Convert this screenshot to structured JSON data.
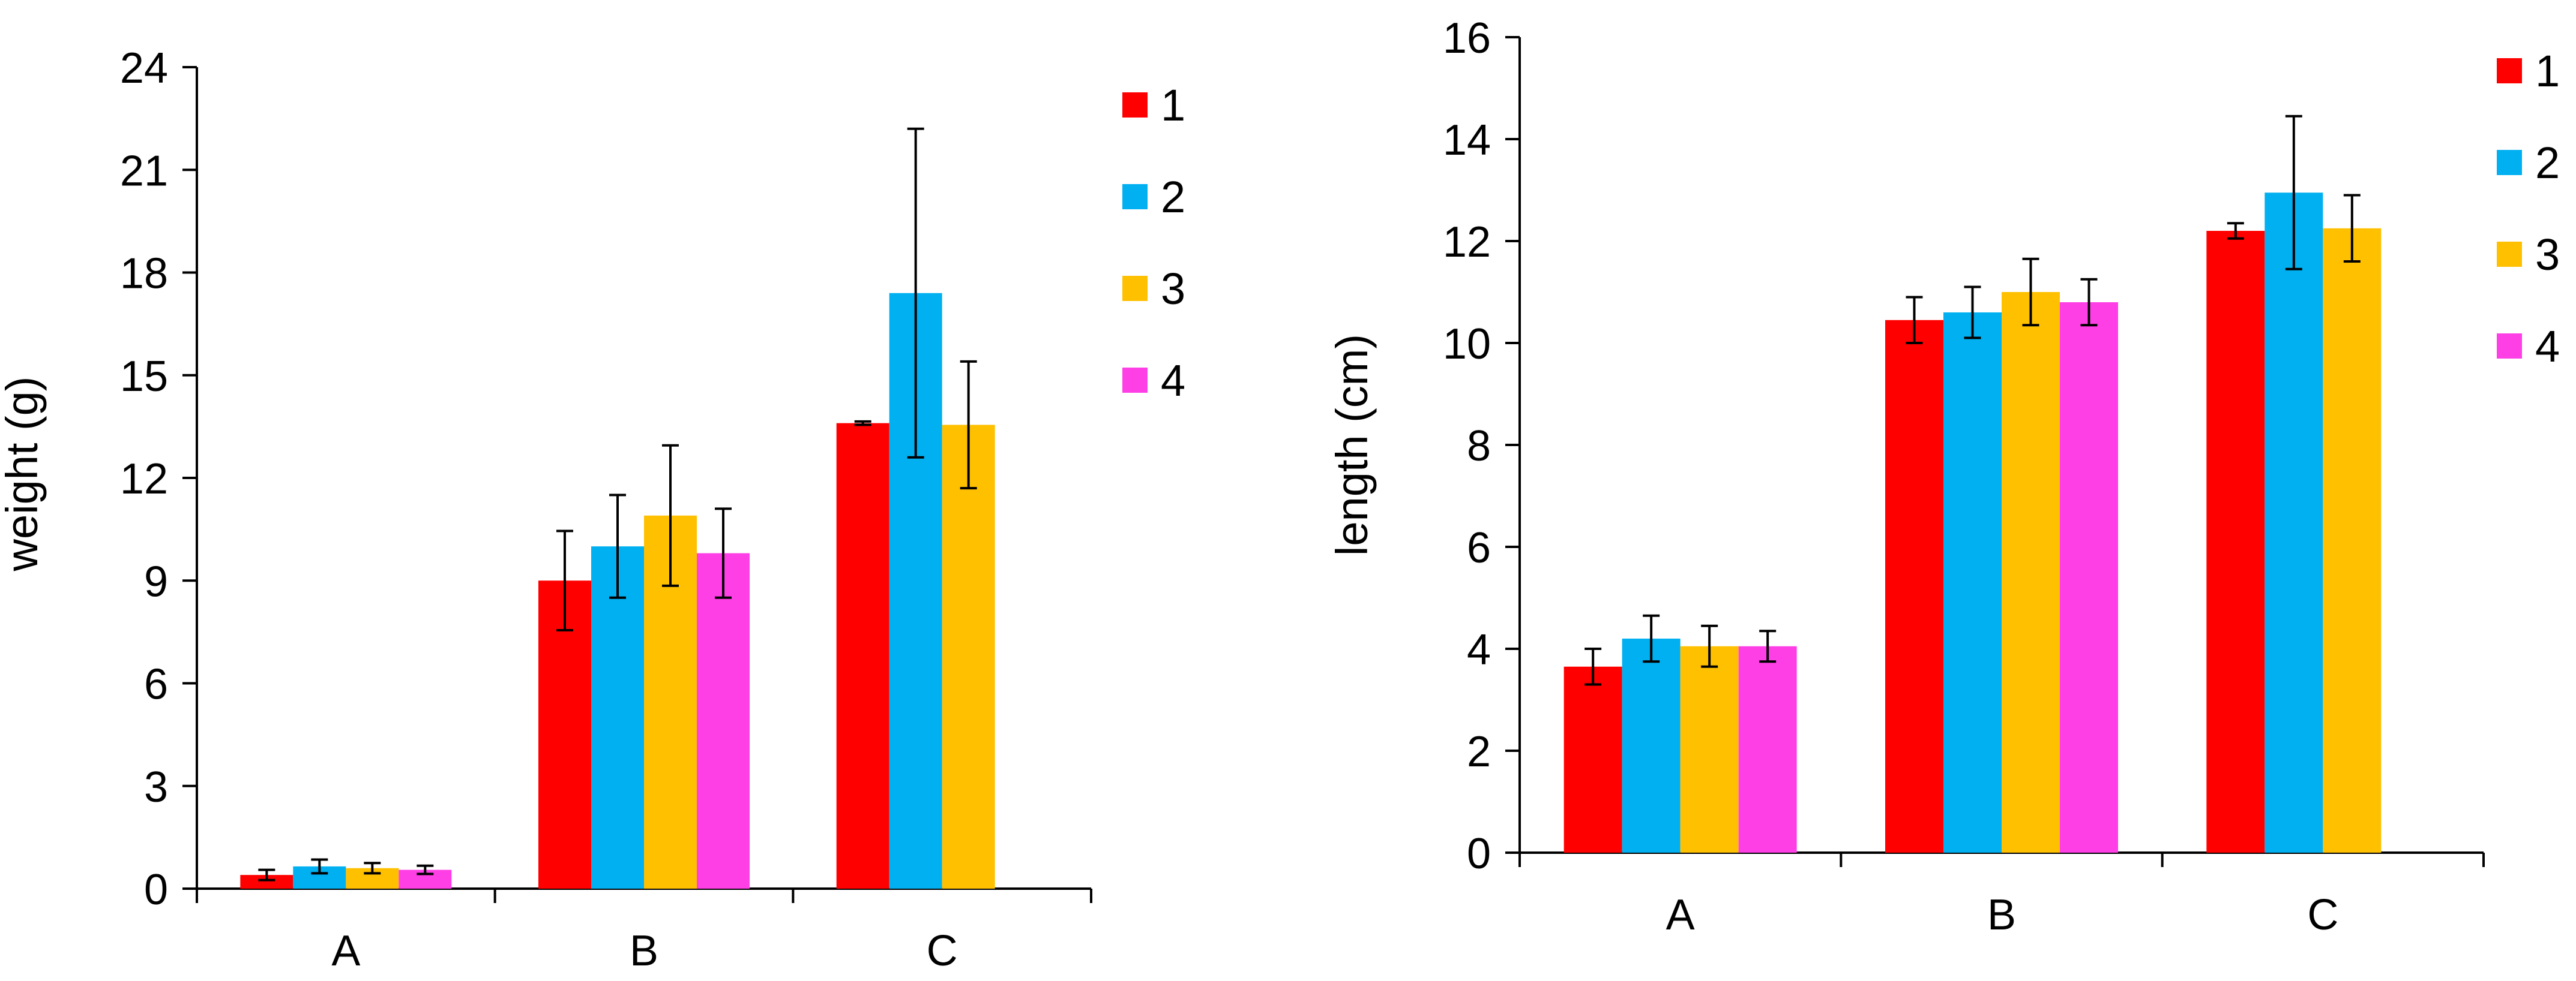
{
  "chart_data": [
    {
      "type": "bar",
      "title": "",
      "xlabel": "",
      "ylabel": "weight (g)",
      "ylim": [
        0,
        24
      ],
      "yticks": [
        0,
        3,
        6,
        9,
        12,
        15,
        18,
        21,
        24
      ],
      "grid": false,
      "legend_position": "top-right",
      "categories": [
        "A",
        "B",
        "C"
      ],
      "series": [
        {
          "name": "1",
          "color": "#ff0000",
          "values": [
            0.4,
            9.0,
            13.6
          ],
          "errors": [
            0.15,
            1.45,
            0.05
          ]
        },
        {
          "name": "2",
          "color": "#00b0f0",
          "values": [
            0.65,
            10.0,
            17.4
          ],
          "errors": [
            0.2,
            1.5,
            4.8
          ]
        },
        {
          "name": "3",
          "color": "#ffc000",
          "values": [
            0.6,
            10.9,
            13.55
          ],
          "errors": [
            0.15,
            2.05,
            1.85
          ]
        },
        {
          "name": "4",
          "color": "#ff3fe6",
          "values": [
            0.55,
            9.8,
            null
          ],
          "errors": [
            0.12,
            1.3,
            null
          ]
        }
      ]
    },
    {
      "type": "bar",
      "title": "",
      "xlabel": "",
      "ylabel": "length (cm)",
      "ylim": [
        0,
        16
      ],
      "yticks": [
        0,
        2,
        4,
        6,
        8,
        10,
        12,
        14,
        16
      ],
      "grid": false,
      "legend_position": "top-right",
      "categories": [
        "A",
        "B",
        "C"
      ],
      "series": [
        {
          "name": "1",
          "color": "#ff0000",
          "values": [
            3.65,
            10.45,
            12.2
          ],
          "errors": [
            0.35,
            0.45,
            0.15
          ]
        },
        {
          "name": "2",
          "color": "#00b0f0",
          "values": [
            4.2,
            10.6,
            12.95
          ],
          "errors": [
            0.45,
            0.5,
            1.5
          ]
        },
        {
          "name": "3",
          "color": "#ffc000",
          "values": [
            4.05,
            11.0,
            12.25
          ],
          "errors": [
            0.4,
            0.65,
            0.65
          ]
        },
        {
          "name": "4",
          "color": "#ff3fe6",
          "values": [
            4.05,
            10.8,
            null
          ],
          "errors": [
            0.3,
            0.45,
            null
          ]
        }
      ]
    }
  ]
}
